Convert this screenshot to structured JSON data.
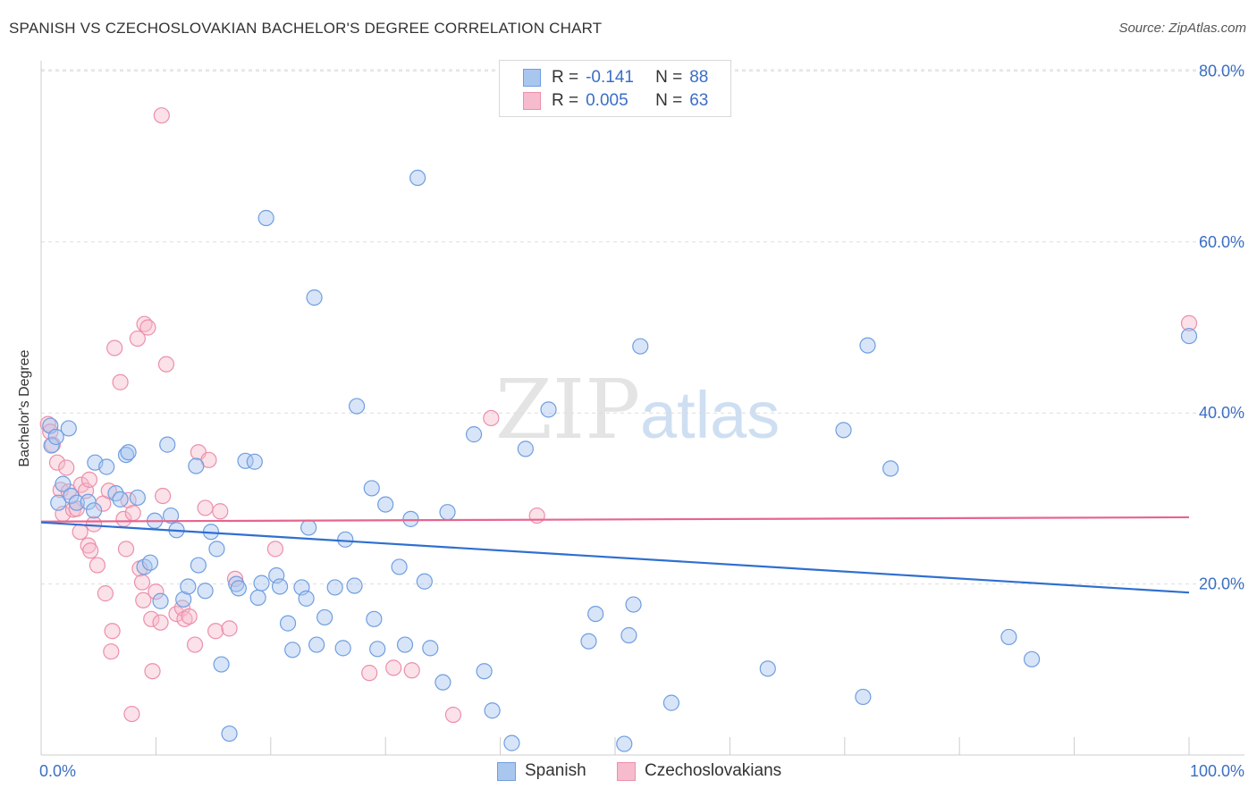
{
  "title": "SPANISH VS CZECHOSLOVAKIAN BACHELOR'S DEGREE CORRELATION CHART",
  "source": "Source: ZipAtlas.com",
  "watermark": {
    "zip": "ZIP",
    "atlas": "atlas"
  },
  "legend_top": {
    "spanish": {
      "r_label": "R =",
      "r_value": "-0.141",
      "n_label": "N =",
      "n_value": "88"
    },
    "czech": {
      "r_label": "R =",
      "r_value": "0.005",
      "n_label": "N =",
      "n_value": "63"
    }
  },
  "legend_bottom": {
    "spanish": "Spanish",
    "czech": "Czechoslovakians"
  },
  "colors": {
    "spanish_fill": "#a9c6ef",
    "spanish_stroke": "#6f9ee0",
    "spanish_line": "#2f6fd0",
    "czech_fill": "#f6bccd",
    "czech_stroke": "#ec8fab",
    "czech_line": "#e8648d",
    "axis_text": "#3a6fc4",
    "grid": "#dddddd"
  },
  "chart_data": {
    "type": "scatter",
    "title": "SPANISH VS CZECHOSLOVAKIAN BACHELOR'S DEGREE CORRELATION CHART",
    "xlabel": "",
    "ylabel": "Bachelor's Degree",
    "xlim": [
      0,
      100
    ],
    "ylim": [
      0,
      83
    ],
    "x_tick_labels": [
      {
        "value": 0,
        "label": "0.0%"
      },
      {
        "value": 100,
        "label": "100.0%"
      }
    ],
    "y_tick_labels": [
      {
        "value": 20,
        "label": "20.0%"
      },
      {
        "value": 40,
        "label": "40.0%"
      },
      {
        "value": 60,
        "label": "60.0%"
      },
      {
        "value": 80,
        "label": "80.0%"
      }
    ],
    "series": [
      {
        "name": "Spanish",
        "r": -0.141,
        "n": 88,
        "trend": {
          "x": [
            0,
            100
          ],
          "y": [
            27.2,
            19.0
          ]
        },
        "points": [
          [
            0.8,
            38.5
          ],
          [
            0.9,
            36.2
          ],
          [
            1.3,
            37.2
          ],
          [
            2.4,
            38.2
          ],
          [
            1.5,
            29.5
          ],
          [
            1.9,
            31.7
          ],
          [
            2.6,
            30.3
          ],
          [
            3.1,
            29.5
          ],
          [
            4.1,
            29.6
          ],
          [
            4.6,
            28.6
          ],
          [
            4.7,
            34.2
          ],
          [
            5.7,
            33.7
          ],
          [
            6.5,
            30.6
          ],
          [
            6.9,
            29.9
          ],
          [
            7.4,
            35.1
          ],
          [
            7.6,
            35.4
          ],
          [
            8.4,
            30.1
          ],
          [
            9.0,
            22.0
          ],
          [
            9.5,
            22.5
          ],
          [
            9.9,
            27.4
          ],
          [
            10.4,
            18.0
          ],
          [
            11.0,
            36.3
          ],
          [
            11.3,
            28.0
          ],
          [
            11.8,
            26.3
          ],
          [
            12.4,
            18.2
          ],
          [
            12.8,
            19.7
          ],
          [
            13.5,
            33.8
          ],
          [
            13.7,
            22.2
          ],
          [
            14.3,
            19.2
          ],
          [
            14.8,
            26.1
          ],
          [
            15.3,
            24.1
          ],
          [
            15.7,
            10.6
          ],
          [
            16.4,
            2.5
          ],
          [
            17.0,
            20.0
          ],
          [
            17.2,
            19.5
          ],
          [
            17.8,
            34.4
          ],
          [
            18.6,
            34.3
          ],
          [
            18.9,
            18.4
          ],
          [
            19.2,
            20.1
          ],
          [
            19.6,
            62.8
          ],
          [
            20.5,
            21.0
          ],
          [
            20.8,
            19.7
          ],
          [
            21.5,
            15.4
          ],
          [
            21.9,
            12.3
          ],
          [
            22.7,
            19.6
          ],
          [
            23.1,
            18.3
          ],
          [
            23.3,
            26.6
          ],
          [
            23.8,
            53.5
          ],
          [
            24.0,
            12.9
          ],
          [
            24.7,
            16.1
          ],
          [
            25.6,
            19.6
          ],
          [
            26.3,
            12.5
          ],
          [
            26.5,
            25.2
          ],
          [
            27.3,
            19.8
          ],
          [
            27.5,
            40.8
          ],
          [
            28.8,
            31.2
          ],
          [
            29.0,
            15.9
          ],
          [
            29.3,
            12.4
          ],
          [
            30.0,
            29.3
          ],
          [
            31.2,
            22.0
          ],
          [
            31.7,
            12.9
          ],
          [
            32.2,
            27.6
          ],
          [
            32.8,
            67.5
          ],
          [
            33.4,
            20.3
          ],
          [
            33.9,
            12.5
          ],
          [
            35.0,
            8.5
          ],
          [
            35.4,
            28.4
          ],
          [
            37.7,
            37.5
          ],
          [
            38.6,
            9.8
          ],
          [
            39.3,
            5.2
          ],
          [
            41.0,
            1.4
          ],
          [
            42.2,
            35.8
          ],
          [
            44.2,
            40.4
          ],
          [
            47.7,
            13.3
          ],
          [
            48.3,
            16.5
          ],
          [
            50.8,
            1.3
          ],
          [
            51.2,
            14.0
          ],
          [
            51.6,
            17.6
          ],
          [
            52.2,
            47.8
          ],
          [
            54.9,
            6.1
          ],
          [
            63.3,
            10.1
          ],
          [
            69.9,
            38.0
          ],
          [
            71.6,
            6.8
          ],
          [
            72.0,
            47.9
          ],
          [
            74.0,
            33.5
          ],
          [
            84.3,
            13.8
          ],
          [
            86.3,
            11.2
          ],
          [
            100.0,
            49.0
          ]
        ]
      },
      {
        "name": "Czechoslovakians",
        "r": 0.005,
        "n": 63,
        "trend": {
          "x": [
            0,
            100
          ],
          "y": [
            27.3,
            27.8
          ]
        },
        "points": [
          [
            0.6,
            38.7
          ],
          [
            0.8,
            37.8
          ],
          [
            1.0,
            36.3
          ],
          [
            1.4,
            34.2
          ],
          [
            1.7,
            31.0
          ],
          [
            1.9,
            28.2
          ],
          [
            2.2,
            33.6
          ],
          [
            2.4,
            30.8
          ],
          [
            2.8,
            28.7
          ],
          [
            3.1,
            28.8
          ],
          [
            3.4,
            26.1
          ],
          [
            3.5,
            31.6
          ],
          [
            3.9,
            30.9
          ],
          [
            4.2,
            32.2
          ],
          [
            4.1,
            24.5
          ],
          [
            4.3,
            23.9
          ],
          [
            4.6,
            27.0
          ],
          [
            4.9,
            22.2
          ],
          [
            5.4,
            29.4
          ],
          [
            5.6,
            18.9
          ],
          [
            5.9,
            30.9
          ],
          [
            6.1,
            12.1
          ],
          [
            6.2,
            14.5
          ],
          [
            6.4,
            47.6
          ],
          [
            6.9,
            43.6
          ],
          [
            7.2,
            27.6
          ],
          [
            7.4,
            24.1
          ],
          [
            7.6,
            29.8
          ],
          [
            7.9,
            4.8
          ],
          [
            8.0,
            28.3
          ],
          [
            8.4,
            48.7
          ],
          [
            8.6,
            21.8
          ],
          [
            8.8,
            20.2
          ],
          [
            8.9,
            18.1
          ],
          [
            9.0,
            50.4
          ],
          [
            9.3,
            50.0
          ],
          [
            9.6,
            15.9
          ],
          [
            9.7,
            9.8
          ],
          [
            10.0,
            19.1
          ],
          [
            10.4,
            15.5
          ],
          [
            10.5,
            74.8
          ],
          [
            10.6,
            30.3
          ],
          [
            10.9,
            45.7
          ],
          [
            11.8,
            16.5
          ],
          [
            12.3,
            17.2
          ],
          [
            12.5,
            15.9
          ],
          [
            12.9,
            16.2
          ],
          [
            13.4,
            12.9
          ],
          [
            13.7,
            35.4
          ],
          [
            14.3,
            28.9
          ],
          [
            14.6,
            34.5
          ],
          [
            15.2,
            14.5
          ],
          [
            15.6,
            28.5
          ],
          [
            16.4,
            14.8
          ],
          [
            16.9,
            20.6
          ],
          [
            20.4,
            24.1
          ],
          [
            28.6,
            9.6
          ],
          [
            30.7,
            10.2
          ],
          [
            32.3,
            9.9
          ],
          [
            35.9,
            4.7
          ],
          [
            39.2,
            39.4
          ],
          [
            43.2,
            28.0
          ],
          [
            100.0,
            50.5
          ]
        ]
      }
    ]
  }
}
